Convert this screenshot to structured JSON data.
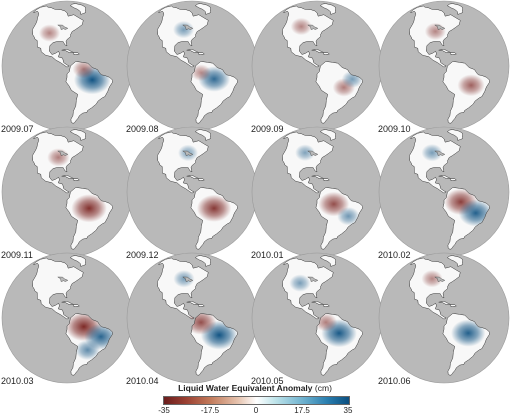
{
  "panels": [
    {
      "date": "2009.07",
      "anomalies": [
        {
          "lon": -57,
          "lat": -5,
          "strength": 0.95
        },
        {
          "lon": -65,
          "lat": 5,
          "strength": -0.35
        },
        {
          "lon": -100,
          "lat": 38,
          "strength": -0.3
        }
      ]
    },
    {
      "date": "2009.08",
      "anomalies": [
        {
          "lon": -60,
          "lat": -4,
          "strength": 0.75
        },
        {
          "lon": -72,
          "lat": 2,
          "strength": -0.25
        },
        {
          "lon": -90,
          "lat": 42,
          "strength": 0.3
        }
      ]
    },
    {
      "date": "2009.09",
      "anomalies": [
        {
          "lon": -55,
          "lat": -12,
          "strength": -0.35
        },
        {
          "lon": -100,
          "lat": 45,
          "strength": -0.3
        },
        {
          "lon": -47,
          "lat": -5,
          "strength": 0.3
        }
      ]
    },
    {
      "date": "2009.10",
      "anomalies": [
        {
          "lon": -55,
          "lat": -10,
          "strength": -0.55
        },
        {
          "lon": -90,
          "lat": 40,
          "strength": -0.3
        }
      ]
    },
    {
      "date": "2009.11",
      "anomalies": [
        {
          "lon": -60,
          "lat": -7,
          "strength": -0.9
        },
        {
          "lon": -90,
          "lat": 40,
          "strength": -0.35
        }
      ]
    },
    {
      "date": "2009.12",
      "anomalies": [
        {
          "lon": -60,
          "lat": -7,
          "strength": -0.85
        },
        {
          "lon": -85,
          "lat": 45,
          "strength": 0.25
        }
      ]
    },
    {
      "date": "2010.01",
      "anomalies": [
        {
          "lon": -65,
          "lat": -3,
          "strength": -0.7
        },
        {
          "lon": -50,
          "lat": -15,
          "strength": 0.35
        },
        {
          "lon": -95,
          "lat": 45,
          "strength": 0.25
        }
      ]
    },
    {
      "date": "2010.02",
      "anomalies": [
        {
          "lon": -65,
          "lat": -1,
          "strength": -0.8
        },
        {
          "lon": -50,
          "lat": -12,
          "strength": 0.85
        },
        {
          "lon": -95,
          "lat": 45,
          "strength": 0.3
        }
      ]
    },
    {
      "date": "2010.03",
      "anomalies": [
        {
          "lon": -65,
          "lat": 0,
          "strength": -0.95
        },
        {
          "lon": -48,
          "lat": -10,
          "strength": 0.8
        },
        {
          "lon": -60,
          "lat": -22,
          "strength": 0.45
        }
      ]
    },
    {
      "date": "2010.04",
      "anomalies": [
        {
          "lon": -55,
          "lat": -8,
          "strength": 0.95
        },
        {
          "lon": -72,
          "lat": 4,
          "strength": -0.7
        },
        {
          "lon": -90,
          "lat": 45,
          "strength": 0.3
        }
      ]
    },
    {
      "date": "2010.05",
      "anomalies": [
        {
          "lon": -60,
          "lat": -6,
          "strength": 0.9
        },
        {
          "lon": -72,
          "lat": 4,
          "strength": -0.35
        },
        {
          "lon": -100,
          "lat": 40,
          "strength": 0.3
        }
      ]
    },
    {
      "date": "2010.06",
      "anomalies": [
        {
          "lon": -58,
          "lat": -6,
          "strength": 0.85
        },
        {
          "lon": -95,
          "lat": 45,
          "strength": -0.3
        }
      ]
    }
  ],
  "legend": {
    "title": "Liquid Water Equivalent Anomaly",
    "unit": "(cm)",
    "ticks": [
      "-35",
      "-17.5",
      "0",
      "17.5",
      "35"
    ],
    "range": [
      -35,
      35
    ]
  },
  "colors": {
    "background": "#ffffff",
    "ocean": "#b9b9b9",
    "land": "#f8f8f8",
    "coastline": "#333333",
    "positive": "#0b4f80",
    "negative": "#7a2320"
  }
}
